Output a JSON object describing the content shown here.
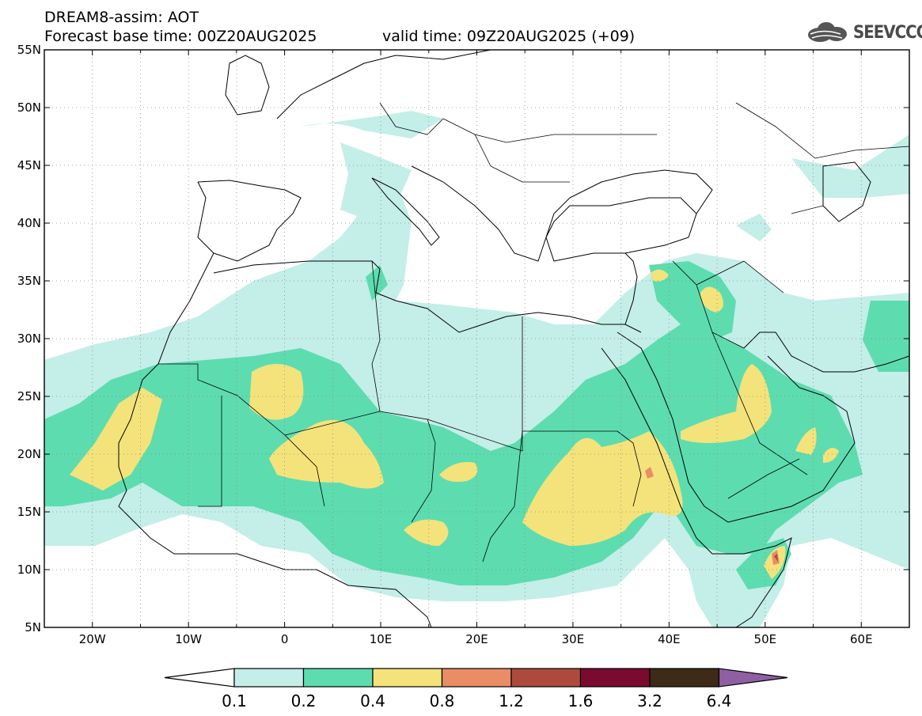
{
  "header": {
    "product": "DREAM8-assim: AOT",
    "base_time": "Forecast base time: 00Z20AUG2025",
    "valid_time": "valid time: 09Z20AUG2025 (+09)",
    "logo_text": "SEEVCCC",
    "logo_icon": "cloud-logo-icon"
  },
  "map": {
    "lon_range": [
      -25,
      65
    ],
    "lat_range": [
      5,
      55
    ],
    "lat_labels": [
      "55N",
      "50N",
      "45N",
      "40N",
      "35N",
      "30N",
      "25N",
      "20N",
      "15N",
      "10N",
      "5N"
    ],
    "lon_labels": [
      "20W",
      "10W",
      "0",
      "10E",
      "20E",
      "30E",
      "40E",
      "50E",
      "60E"
    ]
  },
  "colorbar": {
    "labels": [
      "0.1",
      "0.2",
      "0.4",
      "0.8",
      "1.2",
      "1.6",
      "3.2",
      "6.4"
    ],
    "colors": [
      "#ffffff",
      "#c4eee8",
      "#5ddcb0",
      "#f4e37a",
      "#e88d66",
      "#ac4a3d",
      "#7a0a2f",
      "#3d2a17",
      "#8f5fa3"
    ]
  }
}
